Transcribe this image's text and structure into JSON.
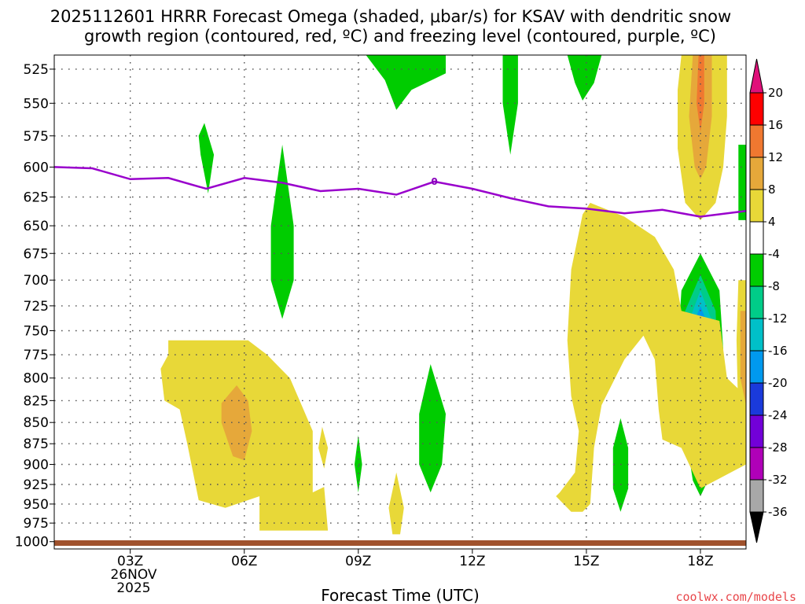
{
  "chart_data": {
    "type": "contour",
    "title_line1": "2025112601 HRRR Forecast Omega (shaded, μbar/s) for KSAV with dendritic snow",
    "title_line2": "growth region (contoured, red, ºC) and freezing level (contoured, purple, ºC)",
    "xlabel": "Forecast Time (UTC)",
    "date_line1": "26NOV",
    "date_line2": "2025",
    "credit": "coolwx.com/models",
    "x_range": [
      1,
      19.2
    ],
    "x_ticks": [
      {
        "hour": 3,
        "label": "03Z"
      },
      {
        "hour": 6,
        "label": "06Z"
      },
      {
        "hour": 9,
        "label": "09Z"
      },
      {
        "hour": 12,
        "label": "12Z"
      },
      {
        "hour": 15,
        "label": "15Z"
      },
      {
        "hour": 18,
        "label": "18Z"
      }
    ],
    "y_levels_hpa": [
      "525",
      "550",
      "575",
      "600",
      "625",
      "650",
      "675",
      "700",
      "725",
      "750",
      "775",
      "800",
      "825",
      "850",
      "875",
      "900",
      "925",
      "950",
      "975",
      "1000"
    ],
    "y_range_hpa": [
      515,
      1010
    ],
    "colorbar": {
      "labels": [
        "20",
        "16",
        "12",
        "8",
        "4",
        "-4",
        "-8",
        "-12",
        "-16",
        "-20",
        "-24",
        "-28",
        "-32",
        "-36"
      ],
      "bins": [
        {
          "color": "#ff0000"
        },
        {
          "color": "#f07830"
        },
        {
          "color": "#e6a83a"
        },
        {
          "color": "#e8d838"
        },
        {
          "color": "#ffffff"
        },
        {
          "color": "#00cc00"
        },
        {
          "color": "#00cc88"
        },
        {
          "color": "#00c0c8"
        },
        {
          "color": "#0099ee"
        },
        {
          "color": "#1a3adb"
        },
        {
          "color": "#7200d8"
        },
        {
          "color": "#b000b8"
        },
        {
          "color": "#a8a8a8"
        }
      ],
      "top_color": "#e0107a",
      "bottom_color": "#000000"
    },
    "freezing_level": {
      "label": "0",
      "color": "#9900cc",
      "points": [
        [
          1.0,
          600
        ],
        [
          2.0,
          601
        ],
        [
          3.0,
          610
        ],
        [
          4.0,
          609
        ],
        [
          5.0,
          618
        ],
        [
          6.0,
          609
        ],
        [
          7.0,
          613
        ],
        [
          8.0,
          620
        ],
        [
          9.0,
          618
        ],
        [
          10.0,
          623
        ],
        [
          11.0,
          612
        ],
        [
          12.0,
          618
        ],
        [
          13.0,
          626
        ],
        [
          14.0,
          633
        ],
        [
          15.0,
          635
        ],
        [
          16.0,
          639
        ],
        [
          17.0,
          636
        ],
        [
          18.0,
          642
        ],
        [
          19.2,
          637
        ]
      ]
    },
    "omega_regions": [
      {
        "name": "green-top-09z",
        "color": "#00cc00",
        "points": [
          [
            9.2,
            515
          ],
          [
            9.7,
            533
          ],
          [
            10.0,
            555
          ],
          [
            10.4,
            540
          ],
          [
            11.3,
            528
          ],
          [
            11.3,
            515
          ]
        ]
      },
      {
        "name": "green-top-13z",
        "color": "#00cc00",
        "points": [
          [
            12.8,
            515
          ],
          [
            12.8,
            550
          ],
          [
            13.0,
            590
          ],
          [
            13.2,
            550
          ],
          [
            13.2,
            515
          ]
        ]
      },
      {
        "name": "green-top-15z",
        "color": "#00cc00",
        "points": [
          [
            14.5,
            515
          ],
          [
            14.7,
            535
          ],
          [
            14.9,
            548
          ],
          [
            15.2,
            535
          ],
          [
            15.4,
            515
          ]
        ]
      },
      {
        "name": "green-05z",
        "color": "#00cc00",
        "points": [
          [
            4.95,
            565
          ],
          [
            5.2,
            590
          ],
          [
            5.05,
            622
          ],
          [
            4.85,
            590
          ],
          [
            4.8,
            575
          ]
        ]
      },
      {
        "name": "green-07z",
        "color": "#00cc00",
        "points": [
          [
            7.0,
            582
          ],
          [
            7.3,
            650
          ],
          [
            7.3,
            700
          ],
          [
            7.0,
            738
          ],
          [
            6.7,
            700
          ],
          [
            6.7,
            650
          ]
        ]
      },
      {
        "name": "green-09z-low",
        "color": "#00cc00",
        "points": [
          [
            9.0,
            865
          ],
          [
            9.1,
            900
          ],
          [
            9.0,
            935
          ],
          [
            8.9,
            900
          ]
        ]
      },
      {
        "name": "green-11z",
        "color": "#00cc00",
        "points": [
          [
            10.9,
            785
          ],
          [
            11.3,
            840
          ],
          [
            11.2,
            900
          ],
          [
            10.9,
            935
          ],
          [
            10.6,
            900
          ],
          [
            10.6,
            840
          ]
        ]
      },
      {
        "name": "green-16z",
        "color": "#00cc00",
        "points": [
          [
            15.9,
            845
          ],
          [
            16.1,
            880
          ],
          [
            16.1,
            930
          ],
          [
            15.9,
            960
          ],
          [
            15.7,
            930
          ],
          [
            15.7,
            880
          ]
        ]
      },
      {
        "name": "green-18z-ring",
        "color": "#00cc00",
        "points": [
          [
            18.0,
            675
          ],
          [
            18.5,
            710
          ],
          [
            18.6,
            770
          ],
          [
            18.5,
            860
          ],
          [
            18.2,
            920
          ],
          [
            18.0,
            940
          ],
          [
            17.8,
            920
          ],
          [
            17.6,
            860
          ],
          [
            17.4,
            770
          ],
          [
            17.5,
            710
          ]
        ]
      },
      {
        "name": "green-19z-edge",
        "color": "#00cc00",
        "points": [
          [
            19.0,
            582
          ],
          [
            19.2,
            582
          ],
          [
            19.2,
            645
          ],
          [
            19.0,
            645
          ]
        ]
      },
      {
        "name": "cyan-18z",
        "color": "#00cc88",
        "points": [
          [
            18.0,
            695
          ],
          [
            18.4,
            730
          ],
          [
            18.45,
            780
          ],
          [
            18.3,
            850
          ],
          [
            18.0,
            882
          ],
          [
            17.7,
            850
          ],
          [
            17.55,
            780
          ],
          [
            17.6,
            730
          ]
        ]
      },
      {
        "name": "teal-18z",
        "color": "#00c0c8",
        "points": [
          [
            18.0,
            710
          ],
          [
            18.3,
            740
          ],
          [
            18.35,
            780
          ],
          [
            18.2,
            840
          ],
          [
            18.0,
            865
          ],
          [
            17.8,
            840
          ],
          [
            17.65,
            780
          ],
          [
            17.7,
            740
          ]
        ]
      },
      {
        "name": "blue-18z",
        "color": "#0099ee",
        "points": [
          [
            18.0,
            725
          ],
          [
            18.25,
            750
          ],
          [
            18.25,
            785
          ],
          [
            18.15,
            825
          ],
          [
            18.0,
            845
          ],
          [
            17.85,
            825
          ],
          [
            17.75,
            785
          ],
          [
            17.75,
            750
          ]
        ]
      },
      {
        "name": "darkblue-18z",
        "color": "#1a3adb",
        "points": [
          [
            18.0,
            738
          ],
          [
            18.15,
            760
          ],
          [
            18.15,
            795
          ],
          [
            18.0,
            820
          ],
          [
            17.85,
            795
          ],
          [
            17.85,
            760
          ]
        ]
      },
      {
        "name": "purple-18z",
        "color": "#7200d8",
        "points": [
          [
            18.0,
            755
          ],
          [
            18.08,
            775
          ],
          [
            18.0,
            800
          ],
          [
            17.92,
            775
          ]
        ]
      },
      {
        "name": "yellow-03z",
        "color": "#e8d838",
        "points": [
          [
            4.0,
            760
          ],
          [
            6.1,
            760
          ],
          [
            6.6,
            775
          ],
          [
            7.2,
            800
          ],
          [
            7.8,
            860
          ],
          [
            7.8,
            935
          ],
          [
            8.1,
            928
          ],
          [
            8.2,
            985
          ],
          [
            6.4,
            985
          ],
          [
            6.4,
            940
          ],
          [
            5.5,
            955
          ],
          [
            4.8,
            945
          ],
          [
            4.5,
            875
          ],
          [
            4.3,
            835
          ],
          [
            3.9,
            825
          ],
          [
            3.8,
            790
          ],
          [
            4.0,
            775
          ]
        ]
      },
      {
        "name": "yellow-08z",
        "color": "#e8d838",
        "points": [
          [
            8.05,
            855
          ],
          [
            8.2,
            880
          ],
          [
            8.1,
            905
          ],
          [
            7.95,
            880
          ]
        ]
      },
      {
        "name": "yellow-10z",
        "color": "#e8d838",
        "points": [
          [
            10.0,
            910
          ],
          [
            10.2,
            955
          ],
          [
            10.1,
            990
          ],
          [
            9.9,
            990
          ],
          [
            9.8,
            955
          ]
        ]
      },
      {
        "name": "yellow-15z",
        "color": "#e8d838",
        "points": [
          [
            15.1,
            630
          ],
          [
            16.0,
            642
          ],
          [
            16.8,
            660
          ],
          [
            17.3,
            690
          ],
          [
            17.5,
            730
          ],
          [
            18.5,
            740
          ],
          [
            18.7,
            800
          ],
          [
            19.2,
            820
          ],
          [
            19.2,
            900
          ],
          [
            18.0,
            930
          ],
          [
            17.5,
            880
          ],
          [
            17.0,
            870
          ],
          [
            16.9,
            835
          ],
          [
            16.8,
            780
          ],
          [
            16.5,
            755
          ],
          [
            16.0,
            780
          ],
          [
            15.4,
            830
          ],
          [
            15.2,
            880
          ],
          [
            15.1,
            950
          ],
          [
            14.9,
            960
          ],
          [
            14.6,
            960
          ],
          [
            14.2,
            940
          ],
          [
            14.3,
            935
          ],
          [
            14.7,
            910
          ],
          [
            14.8,
            860
          ],
          [
            14.6,
            820
          ],
          [
            14.5,
            760
          ],
          [
            14.6,
            690
          ],
          [
            14.9,
            640
          ]
        ]
      },
      {
        "name": "yellow-18z-top",
        "color": "#e8d838",
        "points": [
          [
            17.5,
            515
          ],
          [
            18.7,
            515
          ],
          [
            18.7,
            560
          ],
          [
            18.6,
            600
          ],
          [
            18.4,
            630
          ],
          [
            18.0,
            645
          ],
          [
            17.6,
            630
          ],
          [
            17.4,
            585
          ],
          [
            17.4,
            540
          ]
        ]
      },
      {
        "name": "yellow-19z-edge",
        "color": "#e8d838",
        "points": [
          [
            19.0,
            700
          ],
          [
            19.2,
            700
          ],
          [
            19.2,
            880
          ],
          [
            19.0,
            850
          ],
          [
            18.95,
            760
          ]
        ]
      },
      {
        "name": "gold-05z",
        "color": "#e6a83a",
        "points": [
          [
            5.8,
            808
          ],
          [
            6.1,
            825
          ],
          [
            6.2,
            860
          ],
          [
            6.0,
            895
          ],
          [
            5.7,
            890
          ],
          [
            5.4,
            850
          ],
          [
            5.4,
            828
          ]
        ]
      },
      {
        "name": "gold-18z-top",
        "color": "#e6a83a",
        "points": [
          [
            17.8,
            515
          ],
          [
            18.3,
            515
          ],
          [
            18.3,
            560
          ],
          [
            18.15,
            600
          ],
          [
            18.0,
            610
          ],
          [
            17.85,
            600
          ],
          [
            17.7,
            560
          ]
        ]
      },
      {
        "name": "gold-19z-edge",
        "color": "#e6a83a",
        "points": [
          [
            19.05,
            730
          ],
          [
            19.2,
            730
          ],
          [
            19.2,
            830
          ],
          [
            19.05,
            800
          ]
        ]
      },
      {
        "name": "orange-18z-top",
        "color": "#f07830",
        "points": [
          [
            17.95,
            515
          ],
          [
            18.1,
            515
          ],
          [
            18.1,
            550
          ],
          [
            18.0,
            572
          ],
          [
            17.9,
            550
          ]
        ]
      }
    ]
  }
}
